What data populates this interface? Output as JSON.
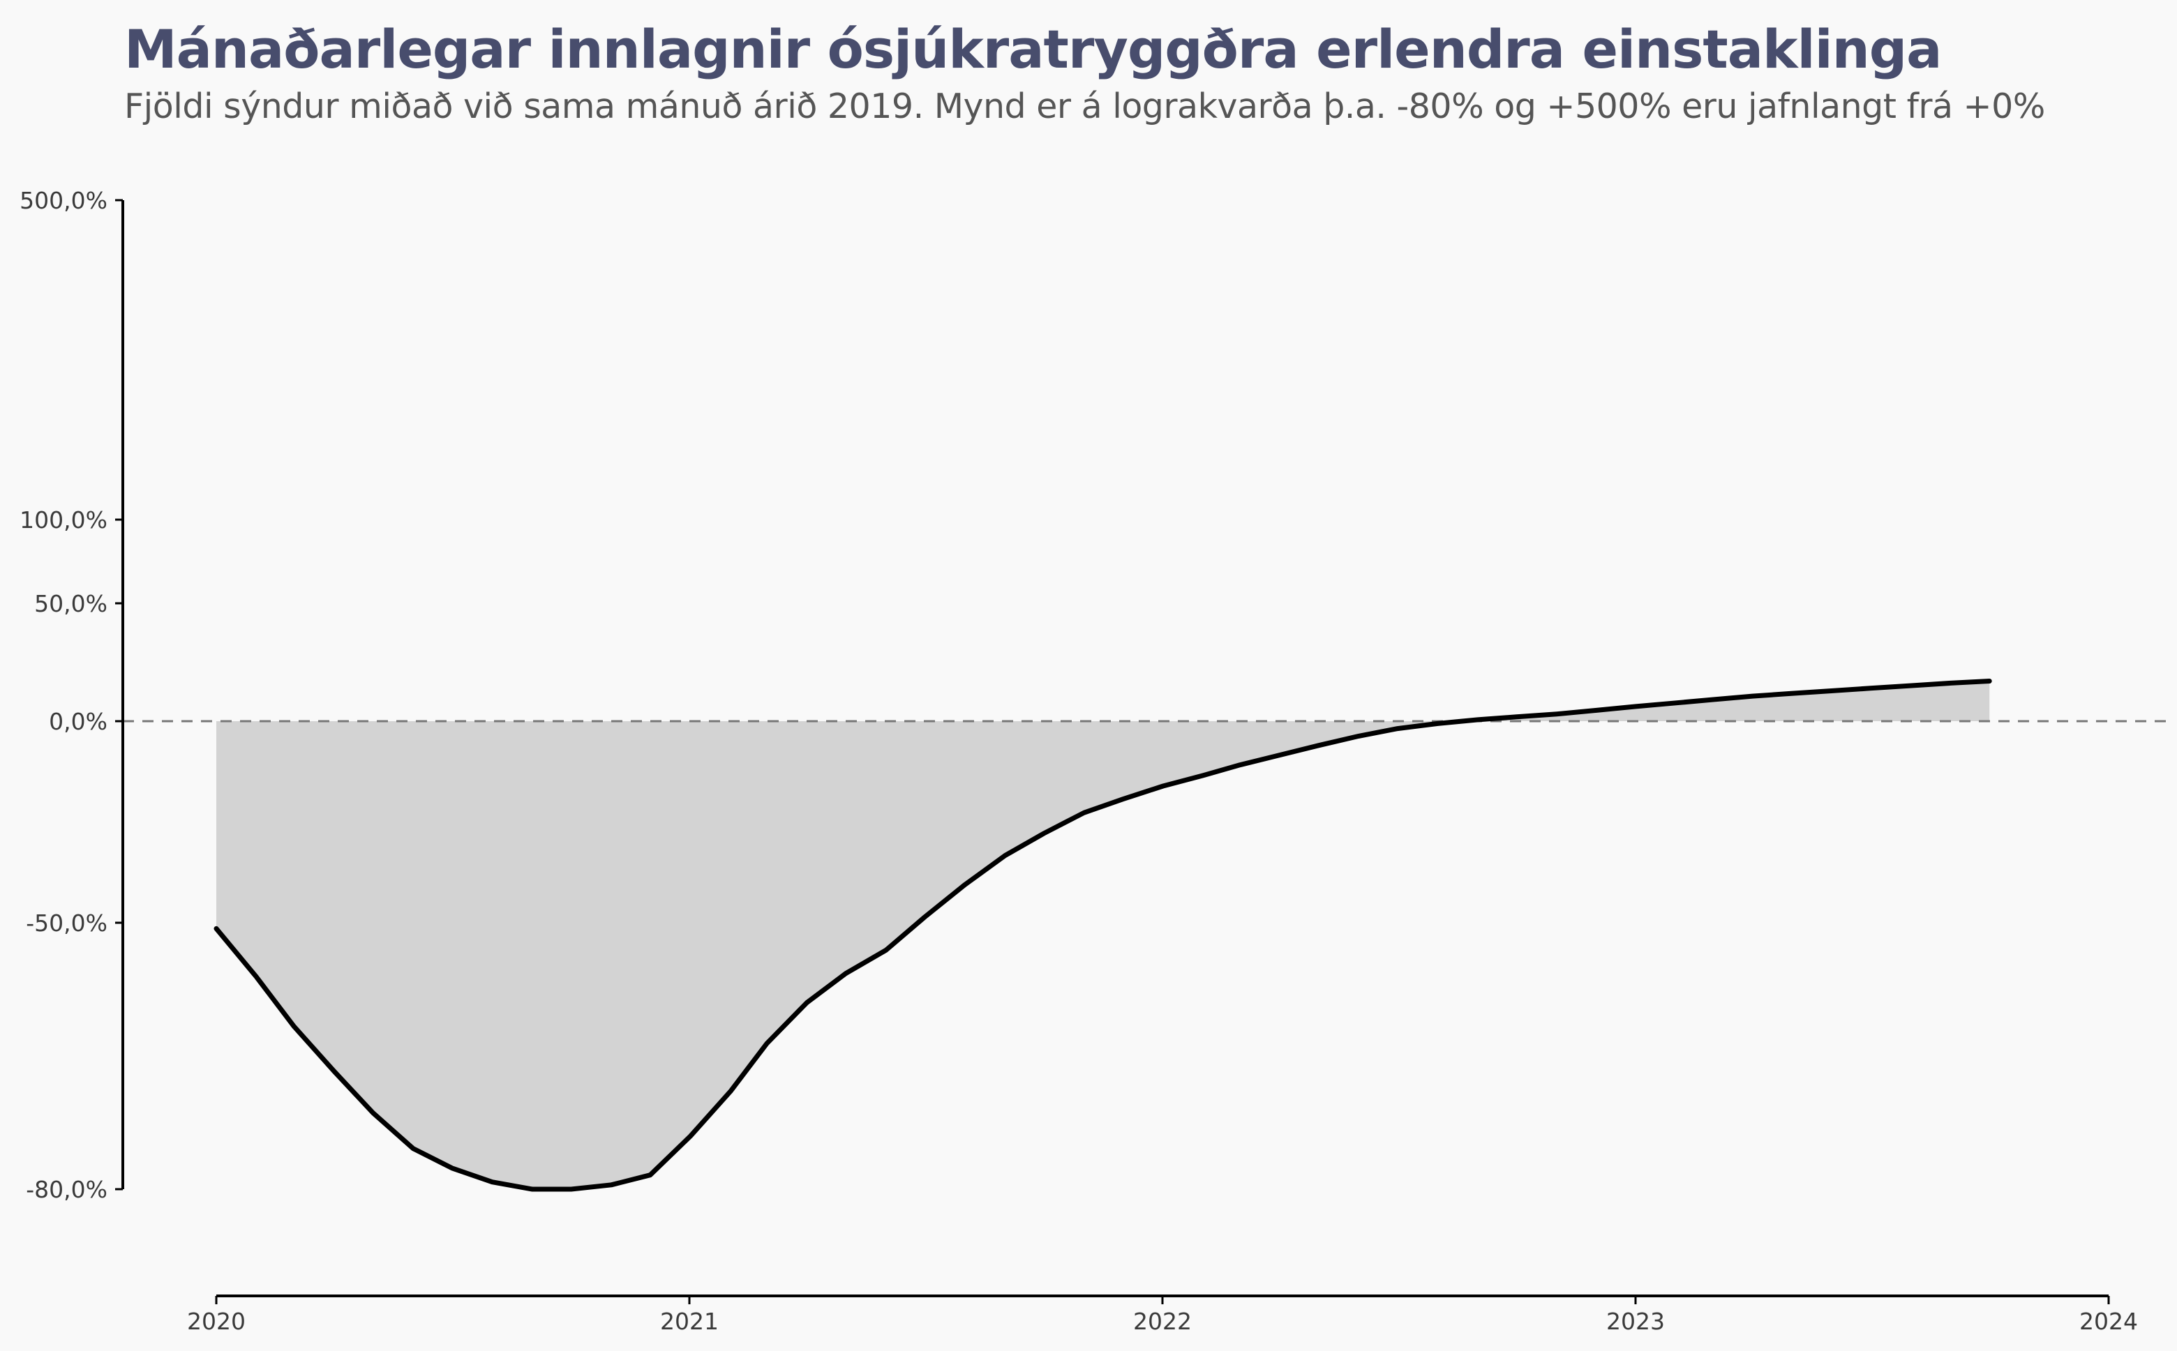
{
  "chart_data": {
    "type": "area",
    "title": "Mánaðarlegar innlagnir ósjúkratryggðra erlendra einstaklinga",
    "subtitle": "Fjöldi sýndur miðað við sama mánuð árið 2019. Mynd er á lograkvarða þ.a. -80% og +500% eru jafnlangt frá +0%",
    "xlabel": "",
    "ylabel": "",
    "x_axis": {
      "type": "date",
      "range": [
        "2020-01-01",
        "2024-01-01"
      ],
      "ticks": [
        "2020",
        "2021",
        "2022",
        "2023",
        "2024"
      ]
    },
    "y_axis": {
      "scale": "log (1 + change)",
      "range": [
        -0.8,
        5.0
      ],
      "ticks": [
        {
          "value": 5.0,
          "label": "500,0%"
        },
        {
          "value": 1.0,
          "label": "100,0%"
        },
        {
          "value": 0.5,
          "label": "50,0%"
        },
        {
          "value": 0.0,
          "label": "0,0%"
        },
        {
          "value": -0.5,
          "label": "-50,0%"
        },
        {
          "value": -0.8,
          "label": "-80,0%"
        }
      ]
    },
    "reference_line": {
      "value": 0.0,
      "style": "dashed"
    },
    "grid": false,
    "legend": "none",
    "colors": {
      "line": "#000000",
      "fill": "#d3d3d3",
      "reference": "#777777",
      "title": "#484d6d",
      "subtitle": "#555555",
      "background": "#f9f9f9"
    },
    "series": [
      {
        "x": [
          "2020-01-01",
          "2020-02-01",
          "2020-03-01",
          "2020-04-01",
          "2020-05-01",
          "2020-06-01",
          "2020-07-01",
          "2020-08-01",
          "2020-09-01",
          "2020-10-01",
          "2020-11-01",
          "2020-12-01",
          "2021-01-01",
          "2021-02-01",
          "2021-03-01",
          "2021-04-01",
          "2021-05-01",
          "2021-06-01",
          "2021-07-01",
          "2021-08-01",
          "2021-09-01",
          "2021-10-01",
          "2021-11-01",
          "2021-12-01",
          "2022-01-01",
          "2022-02-01",
          "2022-03-01",
          "2022-04-01",
          "2022-05-01",
          "2022-06-01",
          "2022-07-01",
          "2022-08-01",
          "2022-09-01",
          "2022-10-01",
          "2022-11-01",
          "2022-12-01",
          "2023-01-01",
          "2023-02-01",
          "2023-03-01",
          "2023-04-01",
          "2023-05-01",
          "2023-06-01",
          "2023-07-01",
          "2023-08-01",
          "2023-09-01",
          "2023-10-01"
        ],
        "values": [
          -0.51,
          -0.585,
          -0.65,
          -0.7,
          -0.74,
          -0.77,
          -0.785,
          -0.795,
          -0.8,
          -0.8,
          -0.797,
          -0.79,
          -0.76,
          -0.72,
          -0.67,
          -0.62,
          -0.58,
          -0.545,
          -0.49,
          -0.43,
          -0.37,
          -0.32,
          -0.27,
          -0.235,
          -0.2,
          -0.17,
          -0.14,
          -0.11,
          -0.08,
          -0.05,
          -0.025,
          -0.008,
          0.005,
          0.015,
          0.025,
          0.038,
          0.052,
          0.065,
          0.077,
          0.09,
          0.1,
          0.11,
          0.12,
          0.13,
          0.14,
          0.148
        ]
      }
    ]
  }
}
